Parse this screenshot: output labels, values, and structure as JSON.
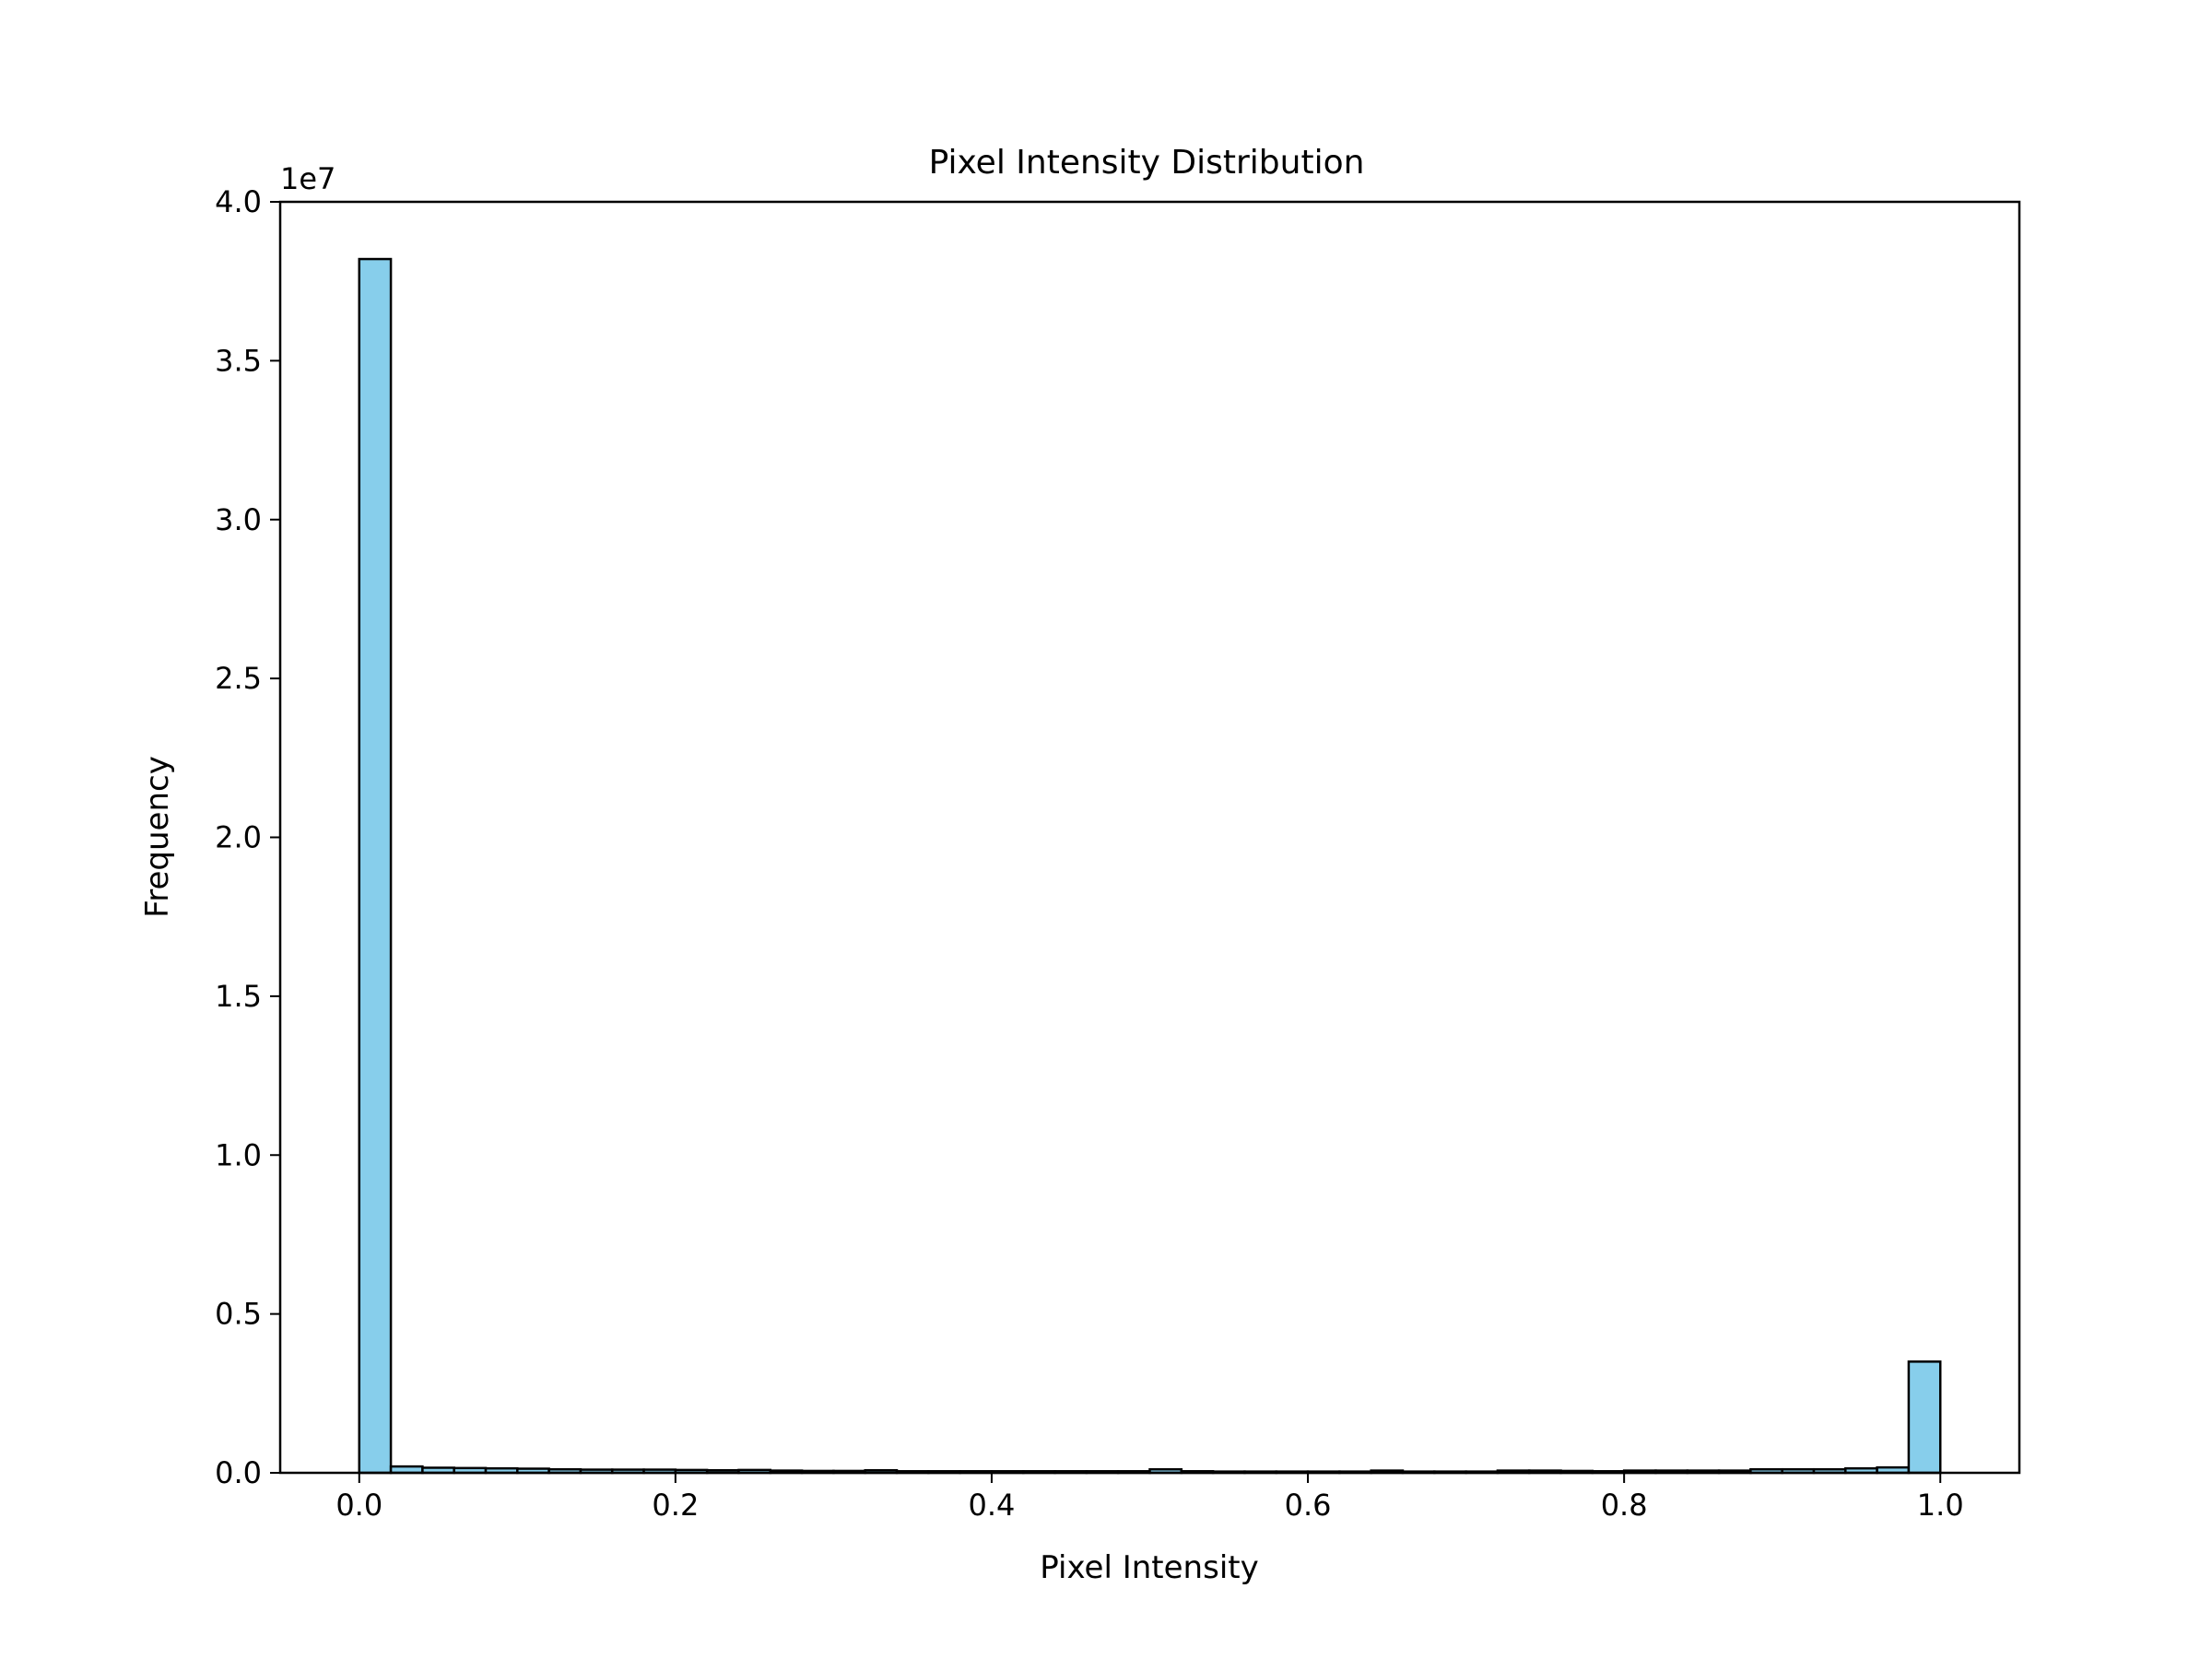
{
  "chart_data": {
    "type": "bar",
    "title": "Pixel Intensity Distribution",
    "xlabel": "Pixel Intensity",
    "ylabel": "Frequency",
    "y_scale_label": "1e7",
    "y_scale_factor": 10000000,
    "xlim": [
      -0.05,
      1.05
    ],
    "ylim": [
      0,
      40000000
    ],
    "x_ticks": [
      0.0,
      0.2,
      0.4,
      0.6,
      0.8,
      1.0
    ],
    "x_tick_labels": [
      "0.0",
      "0.2",
      "0.4",
      "0.6",
      "0.8",
      "1.0"
    ],
    "y_ticks": [
      0,
      5000000,
      10000000,
      15000000,
      20000000,
      25000000,
      30000000,
      35000000,
      40000000
    ],
    "y_tick_labels": [
      "0.0",
      "0.5",
      "1.0",
      "1.5",
      "2.0",
      "2.5",
      "3.0",
      "3.5",
      "4.0"
    ],
    "grid": false,
    "legend": "none",
    "bar_color": "#87ceeb",
    "edge_color": "#000000",
    "bin_edges": [
      0.0,
      0.02,
      0.04,
      0.06,
      0.08,
      0.1,
      0.12,
      0.14,
      0.16,
      0.18,
      0.2,
      0.22,
      0.24,
      0.26,
      0.28,
      0.3,
      0.32,
      0.34,
      0.36,
      0.38,
      0.4,
      0.42,
      0.44,
      0.46,
      0.48,
      0.5,
      0.52,
      0.54,
      0.56,
      0.58,
      0.6,
      0.62,
      0.64,
      0.66,
      0.68,
      0.7,
      0.72,
      0.74,
      0.76,
      0.78,
      0.8,
      0.82,
      0.84,
      0.86,
      0.88,
      0.9,
      0.92,
      0.94,
      0.96,
      0.98,
      1.0
    ],
    "values": [
      38200000,
      200000,
      160000,
      150000,
      140000,
      130000,
      110000,
      100000,
      100000,
      100000,
      90000,
      80000,
      90000,
      70000,
      60000,
      60000,
      80000,
      50000,
      50000,
      50000,
      50000,
      50000,
      50000,
      50000,
      50000,
      110000,
      50000,
      40000,
      40000,
      40000,
      40000,
      40000,
      70000,
      40000,
      40000,
      40000,
      70000,
      70000,
      60000,
      50000,
      70000,
      70000,
      70000,
      70000,
      110000,
      110000,
      110000,
      140000,
      170000,
      3500000
    ]
  }
}
